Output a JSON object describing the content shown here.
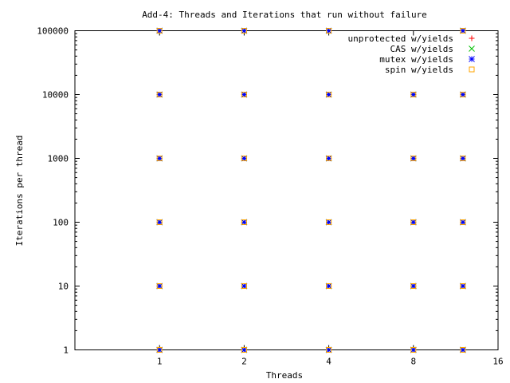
{
  "chart_data": {
    "type": "scatter",
    "title": "Add-4: Threads and Iterations that run without failure",
    "xlabel": "Threads",
    "ylabel": "Iterations per thread",
    "x_scale": "log2",
    "y_scale": "log10",
    "xlim": [
      0.5,
      16
    ],
    "ylim": [
      1,
      100000
    ],
    "x_ticks": [
      1,
      2,
      4,
      8,
      16
    ],
    "x_tick_labels": [
      "1",
      "2",
      "4",
      "8",
      "16"
    ],
    "y_ticks": [
      1,
      10,
      100,
      1000,
      10000,
      100000
    ],
    "y_tick_labels": [
      "1",
      "10",
      "100",
      "1000",
      "10000",
      "100000"
    ],
    "grid": false,
    "legend_position": "top-right",
    "series": [
      {
        "name": "unprotected w/yields",
        "marker": "plus",
        "color": "#ff0000",
        "points": [
          [
            1,
            1
          ],
          [
            2,
            1
          ],
          [
            4,
            1
          ],
          [
            8,
            1
          ],
          [
            12,
            1
          ],
          [
            1,
            10
          ],
          [
            2,
            10
          ],
          [
            4,
            10
          ],
          [
            8,
            10
          ],
          [
            12,
            10
          ],
          [
            1,
            100
          ],
          [
            2,
            100
          ],
          [
            4,
            100
          ],
          [
            8,
            100
          ],
          [
            12,
            100
          ],
          [
            1,
            1000
          ],
          [
            2,
            1000
          ],
          [
            4,
            1000
          ],
          [
            8,
            1000
          ],
          [
            12,
            1000
          ],
          [
            1,
            10000
          ],
          [
            2,
            10000
          ],
          [
            4,
            10000
          ],
          [
            8,
            10000
          ],
          [
            12,
            10000
          ],
          [
            1,
            100000
          ],
          [
            2,
            100000
          ],
          [
            4,
            100000
          ],
          [
            12,
            100000
          ]
        ]
      },
      {
        "name": "CAS w/yields",
        "marker": "cross",
        "color": "#00c000",
        "points": [
          [
            1,
            1
          ],
          [
            2,
            1
          ],
          [
            4,
            1
          ],
          [
            8,
            1
          ],
          [
            12,
            1
          ],
          [
            1,
            10
          ],
          [
            2,
            10
          ],
          [
            4,
            10
          ],
          [
            8,
            10
          ],
          [
            12,
            10
          ],
          [
            1,
            100
          ],
          [
            2,
            100
          ],
          [
            4,
            100
          ],
          [
            8,
            100
          ],
          [
            12,
            100
          ],
          [
            1,
            1000
          ],
          [
            2,
            1000
          ],
          [
            4,
            1000
          ],
          [
            8,
            1000
          ],
          [
            12,
            1000
          ],
          [
            1,
            10000
          ],
          [
            2,
            10000
          ],
          [
            4,
            10000
          ],
          [
            8,
            10000
          ],
          [
            12,
            10000
          ],
          [
            1,
            100000
          ],
          [
            2,
            100000
          ],
          [
            4,
            100000
          ],
          [
            12,
            100000
          ]
        ]
      },
      {
        "name": "mutex w/yields",
        "marker": "star",
        "color": "#0000ff",
        "points": [
          [
            1,
            1
          ],
          [
            2,
            1
          ],
          [
            4,
            1
          ],
          [
            8,
            1
          ],
          [
            12,
            1
          ],
          [
            1,
            10
          ],
          [
            2,
            10
          ],
          [
            4,
            10
          ],
          [
            8,
            10
          ],
          [
            12,
            10
          ],
          [
            1,
            100
          ],
          [
            2,
            100
          ],
          [
            4,
            100
          ],
          [
            8,
            100
          ],
          [
            12,
            100
          ],
          [
            1,
            1000
          ],
          [
            2,
            1000
          ],
          [
            4,
            1000
          ],
          [
            8,
            1000
          ],
          [
            12,
            1000
          ],
          [
            1,
            10000
          ],
          [
            2,
            10000
          ],
          [
            4,
            10000
          ],
          [
            8,
            10000
          ],
          [
            12,
            10000
          ],
          [
            1,
            100000
          ],
          [
            2,
            100000
          ],
          [
            4,
            100000
          ],
          [
            12,
            100000
          ]
        ]
      },
      {
        "name": "spin w/yields",
        "marker": "square",
        "color": "#ffa500",
        "points": [
          [
            1,
            1
          ],
          [
            2,
            1
          ],
          [
            4,
            1
          ],
          [
            8,
            1
          ],
          [
            12,
            1
          ],
          [
            1,
            10
          ],
          [
            2,
            10
          ],
          [
            4,
            10
          ],
          [
            8,
            10
          ],
          [
            12,
            10
          ],
          [
            1,
            100
          ],
          [
            2,
            100
          ],
          [
            4,
            100
          ],
          [
            8,
            100
          ],
          [
            12,
            100
          ],
          [
            1,
            1000
          ],
          [
            2,
            1000
          ],
          [
            4,
            1000
          ],
          [
            8,
            1000
          ],
          [
            12,
            1000
          ],
          [
            1,
            10000
          ],
          [
            2,
            10000
          ],
          [
            4,
            10000
          ],
          [
            8,
            10000
          ],
          [
            12,
            10000
          ],
          [
            1,
            100000
          ],
          [
            2,
            100000
          ],
          [
            4,
            100000
          ],
          [
            12,
            100000
          ]
        ]
      }
    ]
  }
}
